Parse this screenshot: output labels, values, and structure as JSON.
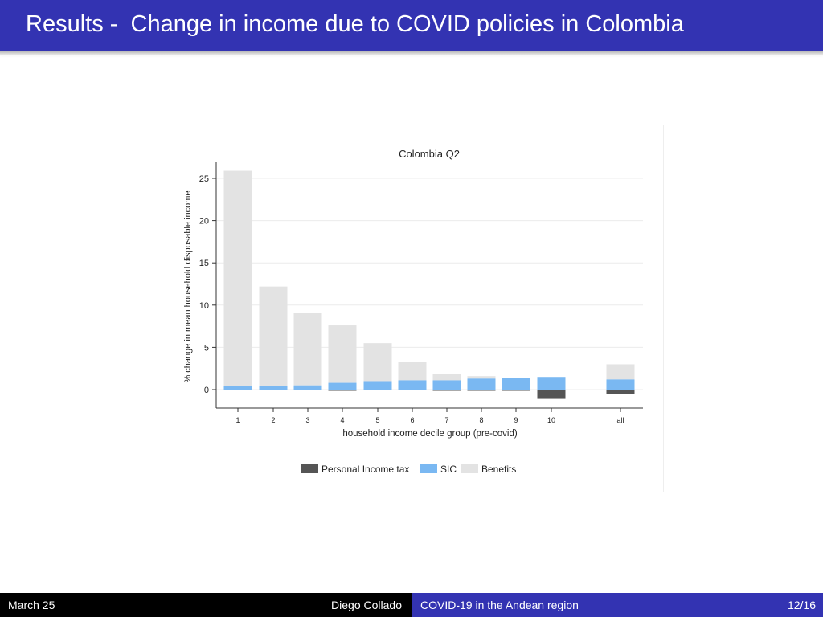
{
  "slide": {
    "title": "Results -  Change in income due to COVID policies in Colombia"
  },
  "footer": {
    "date": "March 25",
    "author": "Diego Collado",
    "talk_title": "COVID-19 in the Andean region",
    "page": "12/16"
  },
  "colors": {
    "header": "#3333b2",
    "tax": "#555555",
    "sic": "#7ab8f2",
    "benefits": "#e3e3e3",
    "grid": "#ececec"
  },
  "chart_data": {
    "type": "bar",
    "stacked": true,
    "title": "Colombia Q2",
    "xlabel": "household income decile group (pre-covid)",
    "ylabel": "% change in mean household disposable income",
    "ylim": [
      -2,
      27
    ],
    "yticks": [
      0,
      5,
      10,
      15,
      20,
      25
    ],
    "grid": true,
    "legend_position": "bottom",
    "categories": [
      "1",
      "2",
      "3",
      "4",
      "5",
      "6",
      "7",
      "8",
      "9",
      "10",
      "all"
    ],
    "series": [
      {
        "name": "Personal Income tax",
        "values": [
          0,
          0,
          0,
          -0.1,
          0,
          0,
          -0.1,
          -0.1,
          -0.1,
          -1.1,
          -0.5
        ]
      },
      {
        "name": "SIC",
        "values": [
          0.4,
          0.4,
          0.5,
          0.8,
          1.0,
          1.1,
          1.1,
          1.3,
          1.4,
          1.5,
          1.2
        ]
      },
      {
        "name": "Benefits",
        "values": [
          25.5,
          11.8,
          8.6,
          6.8,
          4.5,
          2.2,
          0.8,
          0.3,
          0,
          0,
          1.8
        ]
      }
    ]
  }
}
